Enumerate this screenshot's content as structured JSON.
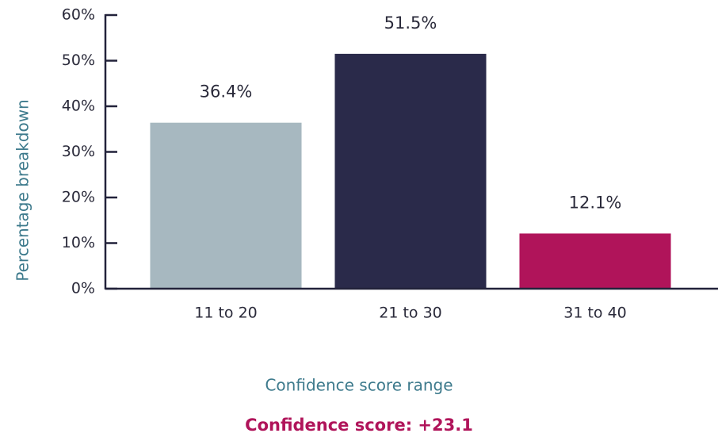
{
  "chart_data": {
    "type": "bar",
    "categories": [
      "11 to 20",
      "21 to 30",
      "31 to 40"
    ],
    "values": [
      36.4,
      51.5,
      12.1
    ],
    "value_labels": [
      "36.4%",
      "51.5%",
      "12.1%"
    ],
    "colors": [
      "#a7b8c0",
      "#2a2a4a",
      "#b0145a"
    ],
    "ylim": [
      0,
      60
    ],
    "yticks": [
      {
        "value": 0,
        "label": "0%"
      },
      {
        "value": 10,
        "label": "10%"
      },
      {
        "value": 20,
        "label": "20%"
      },
      {
        "value": 30,
        "label": "30%"
      },
      {
        "value": 40,
        "label": "40%"
      },
      {
        "value": 50,
        "label": "50%"
      },
      {
        "value": 60,
        "label": "60%"
      }
    ],
    "y_label": "Percentage breakdown",
    "x_label": "Confidence score range",
    "annotation": "Confidence score: +23.1"
  }
}
